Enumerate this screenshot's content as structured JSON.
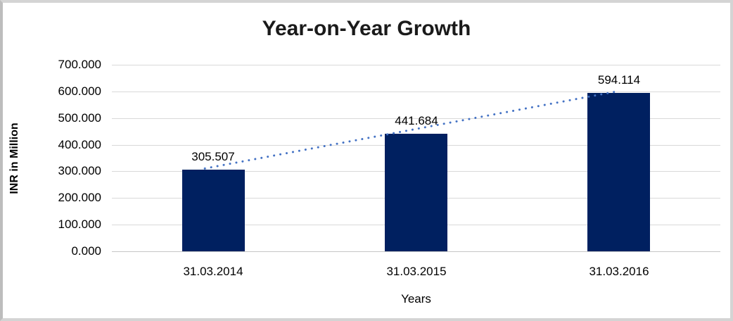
{
  "chart_data": {
    "type": "bar",
    "title": "Year-on-Year Growth",
    "categories": [
      "31.03.2014",
      "31.03.2015",
      "31.03.2016"
    ],
    "values": [
      305.507,
      441.684,
      594.114
    ],
    "data_labels": [
      "305.507",
      "441.684",
      "594.114"
    ],
    "xlabel": "Years",
    "ylabel": "INR in Million",
    "ylim": [
      0,
      700
    ],
    "ytick_step": 100,
    "ytick_labels": [
      "0.000",
      "100.000",
      "200.000",
      "300.000",
      "400.000",
      "500.000",
      "600.000",
      "700.000"
    ],
    "grid": true,
    "legend": "none",
    "trendline": {
      "type": "linear",
      "style": "dotted",
      "from_category": "31.03.2014",
      "to_category": "31.03.2016"
    },
    "colors": {
      "bar_fill": "#002060",
      "trendline": "#4472c4",
      "gridline": "#d9d9d9",
      "axis_line": "#c6c6c6",
      "text": "#000000",
      "title": "#1a1a1a",
      "background": "#ffffff",
      "border": "#d4d4d4"
    }
  }
}
